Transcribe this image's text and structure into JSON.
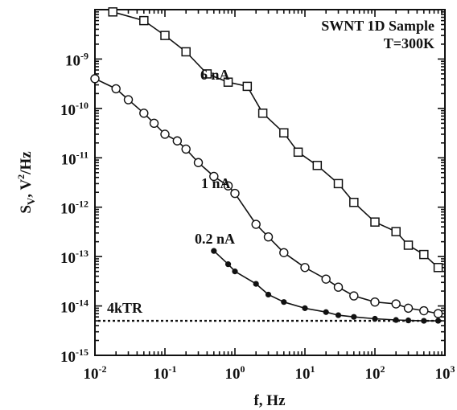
{
  "chart_data": {
    "type": "line",
    "title": "SWNT 1D Sample",
    "subtitle": "T=300K",
    "xlabel": "f, Hz",
    "ylabel_main": "S",
    "ylabel_sub": "V",
    "ylabel_unit_pre": ", V",
    "ylabel_unit_sup": "2",
    "ylabel_unit_post": "/Hz",
    "x_scale": "log",
    "y_scale": "log",
    "xlim": [
      0.01,
      1000
    ],
    "ylim": [
      1e-15,
      1e-08
    ],
    "grid": false,
    "x_ticks": [
      {
        "base": "10",
        "exp": "-2",
        "value": 0.01
      },
      {
        "base": "10",
        "exp": "-1",
        "value": 0.1
      },
      {
        "base": "10",
        "exp": "0",
        "value": 1
      },
      {
        "base": "10",
        "exp": "1",
        "value": 10
      },
      {
        "base": "10",
        "exp": "2",
        "value": 100
      },
      {
        "base": "10",
        "exp": "3",
        "value": 1000
      }
    ],
    "y_ticks": [
      {
        "base": "10",
        "exp": "-9",
        "value": 1e-09
      },
      {
        "base": "10",
        "exp": "-10",
        "value": 1e-10
      },
      {
        "base": "10",
        "exp": "-11",
        "value": 1e-11
      },
      {
        "base": "10",
        "exp": "-12",
        "value": 1e-12
      },
      {
        "base": "10",
        "exp": "-13",
        "value": 1e-13
      },
      {
        "base": "10",
        "exp": "-14",
        "value": 1e-14
      },
      {
        "base": "10",
        "exp": "-15",
        "value": 1e-15
      }
    ],
    "series": [
      {
        "name": "6 nA",
        "marker": "square",
        "x": [
          0.018,
          0.05,
          0.1,
          0.2,
          0.4,
          0.8,
          1.5,
          2.5,
          5,
          8,
          15,
          30,
          50,
          100,
          200,
          300,
          500,
          800
        ],
        "y": [
          9e-09,
          6e-09,
          3e-09,
          1.4e-09,
          5e-10,
          3.4e-10,
          2.8e-10,
          8e-11,
          3.2e-11,
          1.3e-11,
          7e-12,
          3e-12,
          1.25e-12,
          5e-13,
          3.2e-13,
          1.7e-13,
          1.1e-13,
          6e-14
        ]
      },
      {
        "name": "1 nA",
        "marker": "circle",
        "x": [
          0.01,
          0.02,
          0.03,
          0.05,
          0.07,
          0.1,
          0.15,
          0.2,
          0.3,
          0.5,
          0.8,
          1,
          2,
          3,
          5,
          10,
          20,
          30,
          50,
          100,
          200,
          300,
          500,
          800
        ],
        "y": [
          4e-10,
          2.5e-10,
          1.5e-10,
          8e-11,
          5e-11,
          3e-11,
          2.2e-11,
          1.5e-11,
          8e-12,
          4.2e-12,
          2.7e-12,
          1.9e-12,
          4.5e-13,
          2.5e-13,
          1.2e-13,
          6e-14,
          3.5e-14,
          2.4e-14,
          1.6e-14,
          1.2e-14,
          1.1e-14,
          9e-15,
          8e-15,
          7e-15
        ]
      },
      {
        "name": "0.2 nA",
        "marker": "dot",
        "x": [
          0.5,
          0.8,
          1,
          2,
          3,
          5,
          10,
          20,
          30,
          50,
          100,
          200,
          300,
          500,
          800
        ],
        "y": [
          1.3e-13,
          7e-14,
          5e-14,
          2.8e-14,
          1.7e-14,
          1.2e-14,
          9e-15,
          7.5e-15,
          6.5e-15,
          6e-15,
          5.5e-15,
          5.2e-15,
          5.1e-15,
          5e-15,
          5e-15
        ]
      }
    ],
    "reference_line": {
      "label": "4kTR",
      "value": 5e-15
    }
  }
}
